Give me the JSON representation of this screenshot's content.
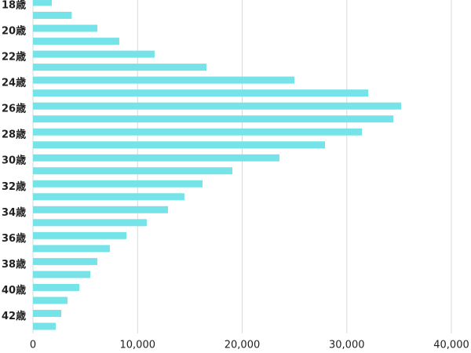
{
  "chart_data": {
    "type": "barh",
    "categories": [
      "18歳",
      null,
      "20歳",
      null,
      "22歳",
      null,
      "24歳",
      null,
      "26歳",
      null,
      "28歳",
      null,
      "30歳",
      null,
      "32歳",
      null,
      "34歳",
      null,
      "36歳",
      null,
      "38歳",
      null,
      "40歳",
      null,
      "42歳",
      null
    ],
    "values": [
      1800,
      3700,
      6150,
      8250,
      11630,
      16590,
      24990,
      32050,
      35200,
      34450,
      31450,
      27920,
      23560,
      19060,
      16210,
      14480,
      12910,
      10880,
      8930,
      7350,
      6150,
      5480,
      4430,
      3300,
      2700,
      2180
    ],
    "color": "#76e3e8",
    "xlim": [
      0,
      40000
    ],
    "xticks": [
      0,
      {
        "value": 10000,
        "label": "10,000"
      },
      {
        "value": 20000,
        "label": "20,000"
      },
      {
        "value": 30000,
        "label": "30,000"
      },
      {
        "value": 40000,
        "label": "40,000"
      }
    ],
    "grid": true
  }
}
